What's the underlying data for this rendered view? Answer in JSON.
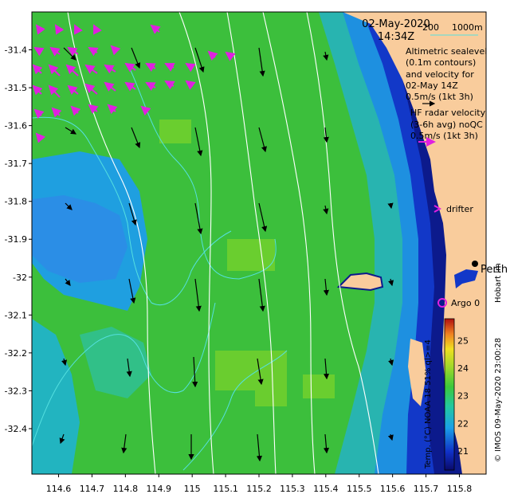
{
  "map": {
    "date_title": "02-May-2020",
    "time_title": "14:34Z",
    "depth_labels": [
      "200",
      "1000m"
    ],
    "altimetry_text": [
      "Altimetric sealevel",
      "(0.1m contours)",
      "and velocity for",
      "02-May 14Z",
      "0.5m/s (1kt 3h)"
    ],
    "hf_text": [
      "HF radar velocity",
      "(3-6h avg) noQC",
      "0.5m/s (1kt 3h)"
    ],
    "drifter_label": "drifter",
    "city_label": "Perth",
    "argo_label": "Argo 0",
    "hobart_label": "Hobart lm",
    "credit": "© IMOS 09-May-2020 23:00:28",
    "colorbar_title": "Temp. (°C) NOAA 18 51% ql>=4",
    "colorbar_ticks": [
      "25",
      "24",
      "23",
      "22",
      "21"
    ],
    "colorbar_range": [
      20.3,
      25.8
    ],
    "x_ticks": [
      "114.6",
      "114.7",
      "114.8",
      "114.9",
      "115",
      "115.1",
      "115.2",
      "115.3",
      "115.4",
      "115.5",
      "115.6",
      "115.7",
      "115.8"
    ],
    "y_ticks": [
      "-31.4",
      "-31.5",
      "-31.6",
      "-31.7",
      "-31.8",
      "-31.9",
      "-32",
      "-32.1",
      "-32.2",
      "-32.3",
      "-32.4"
    ],
    "lon_range": [
      114.52,
      115.88
    ],
    "lat_range": [
      -32.52,
      -31.3
    ],
    "colors": {
      "land": "#f9cc9c",
      "hf_arrow": "#e020e0",
      "argo": "#e020e0",
      "contour": "#ffffff",
      "isobath": "#55e0e0"
    }
  }
}
